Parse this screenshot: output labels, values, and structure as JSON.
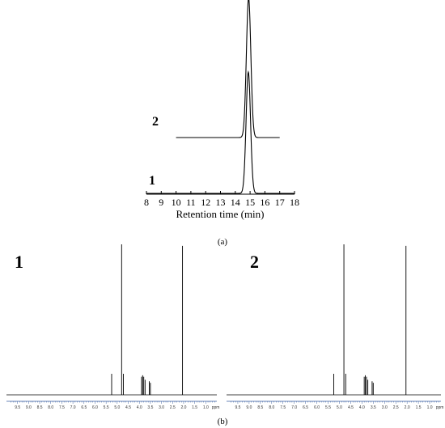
{
  "chart_data": [
    {
      "type": "line",
      "panel": "a",
      "caption": "(a)",
      "xlabel": "Retention time (min)",
      "ylabel": "",
      "xlim": [
        8,
        18
      ],
      "xticks": [
        8,
        9,
        10,
        11,
        12,
        13,
        14,
        15,
        16,
        17,
        18
      ],
      "grid": false,
      "series": [
        {
          "name": "1",
          "x_range": [
            8,
            18
          ],
          "baseline": 0.0,
          "peak_x": 14.88,
          "peak_height": 1.0,
          "peak_sigma": 0.15
        },
        {
          "name": "2",
          "x_range": [
            10,
            17
          ],
          "baseline": 0.46,
          "peak_x": 14.9,
          "peak_height": 1.15,
          "peak_sigma": 0.15
        }
      ]
    },
    {
      "type": "line",
      "panel": "b",
      "caption": "(b)",
      "xlabel": "ppm",
      "xlim": [
        10,
        0.5
      ],
      "xticks": [
        9.5,
        9.0,
        8.5,
        8.0,
        7.5,
        7.0,
        6.5,
        6.0,
        5.5,
        5.0,
        4.5,
        4.0,
        3.5,
        3.0,
        2.5,
        2.0,
        1.5,
        1.0
      ],
      "spectra": [
        {
          "name": "1",
          "peaks": [
            {
              "ppm": 5.25,
              "height": 0.14
            },
            {
              "ppm": 4.8,
              "height": 1.0
            },
            {
              "ppm": 4.72,
              "height": 0.14
            },
            {
              "ppm": 3.9,
              "height": 0.12
            },
            {
              "ppm": 3.85,
              "height": 0.13
            },
            {
              "ppm": 3.8,
              "height": 0.12
            },
            {
              "ppm": 3.74,
              "height": 0.1
            },
            {
              "ppm": 3.55,
              "height": 0.09
            },
            {
              "ppm": 3.5,
              "height": 0.08
            },
            {
              "ppm": 2.05,
              "height": 0.99
            }
          ]
        },
        {
          "name": "2",
          "peaks": [
            {
              "ppm": 5.25,
              "height": 0.14
            },
            {
              "ppm": 4.8,
              "height": 1.0
            },
            {
              "ppm": 4.72,
              "height": 0.14
            },
            {
              "ppm": 3.9,
              "height": 0.12
            },
            {
              "ppm": 3.85,
              "height": 0.13
            },
            {
              "ppm": 3.8,
              "height": 0.12
            },
            {
              "ppm": 3.74,
              "height": 0.1
            },
            {
              "ppm": 3.55,
              "height": 0.09
            },
            {
              "ppm": 3.5,
              "height": 0.08
            },
            {
              "ppm": 2.05,
              "height": 0.99
            }
          ]
        }
      ]
    }
  ]
}
